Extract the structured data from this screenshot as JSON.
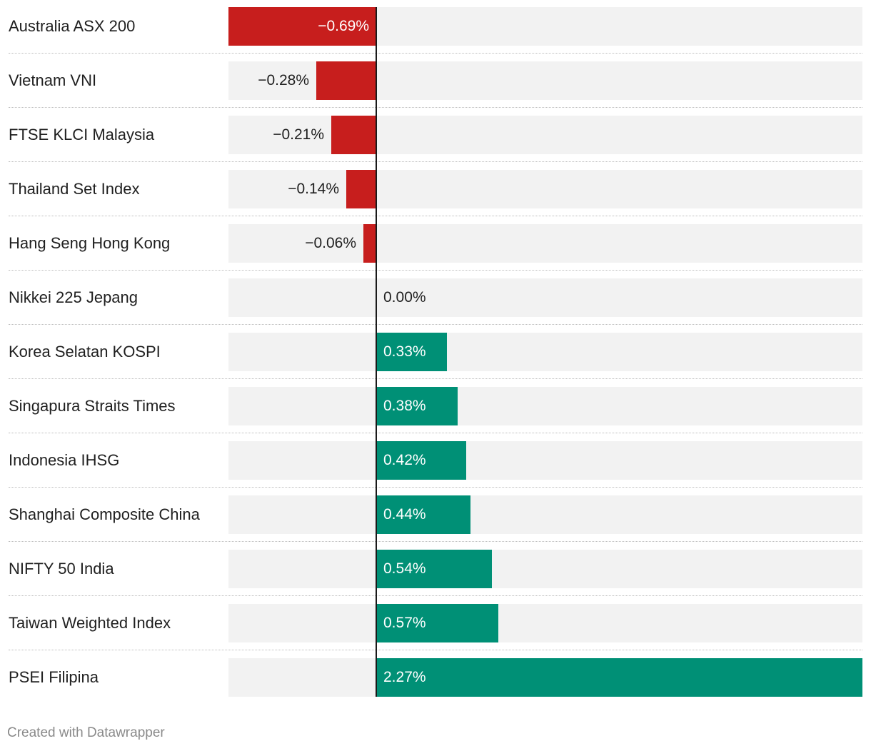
{
  "chart_data": {
    "type": "bar",
    "orientation": "horizontal",
    "categories": [
      "Australia ASX 200",
      "Vietnam VNI",
      "FTSE KLCI Malaysia",
      "Thailand Set Index",
      "Hang Seng Hong Kong",
      "Nikkei 225 Jepang",
      "Korea Selatan KOSPI",
      "Singapura Straits Times",
      "Indonesia IHSG",
      "Shanghai Composite China",
      "NIFTY 50 India",
      "Taiwan Weighted Index",
      "PSEI Filipina"
    ],
    "values": [
      -0.69,
      -0.28,
      -0.21,
      -0.14,
      -0.06,
      0.0,
      0.33,
      0.38,
      0.42,
      0.44,
      0.54,
      0.57,
      2.27
    ],
    "value_labels": [
      "−0.69%",
      "−0.28%",
      "−0.21%",
      "−0.14%",
      "−0.06%",
      "0.00%",
      "0.33%",
      "0.38%",
      "0.42%",
      "0.44%",
      "0.54%",
      "0.57%",
      "2.27%"
    ],
    "xlim": [
      -0.69,
      2.27
    ],
    "colors": {
      "negative": "#c71e1d",
      "positive": "#009076",
      "background": "#f2f2f2",
      "zero_line": "#1a1a1a"
    }
  },
  "footer": {
    "credit": "Created with Datawrapper"
  }
}
